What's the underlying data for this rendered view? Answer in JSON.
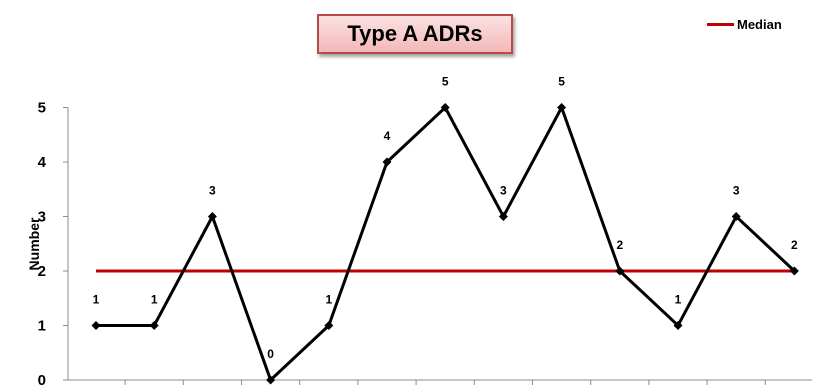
{
  "chart_data": {
    "type": "line",
    "title": "Type A ADRs",
    "ylabel": "Number",
    "xlabel": "",
    "ylim": [
      0,
      5
    ],
    "yticks": [
      "0",
      "1",
      "2",
      "3",
      "4",
      "5"
    ],
    "legend_position": "top-right",
    "colors": {
      "series": "#000000",
      "median": "#c00000",
      "axis": "#8c8c8c"
    },
    "series": [
      {
        "values": [
          1,
          1,
          3,
          0,
          1,
          4,
          5,
          3,
          5,
          2,
          1,
          3,
          2
        ]
      }
    ],
    "median": {
      "name": "Median",
      "value": 2
    },
    "data_labels": [
      "1",
      "1",
      "3",
      "0",
      "1",
      "4",
      "5",
      "3",
      "5",
      "2",
      "1",
      "3",
      "2"
    ]
  }
}
